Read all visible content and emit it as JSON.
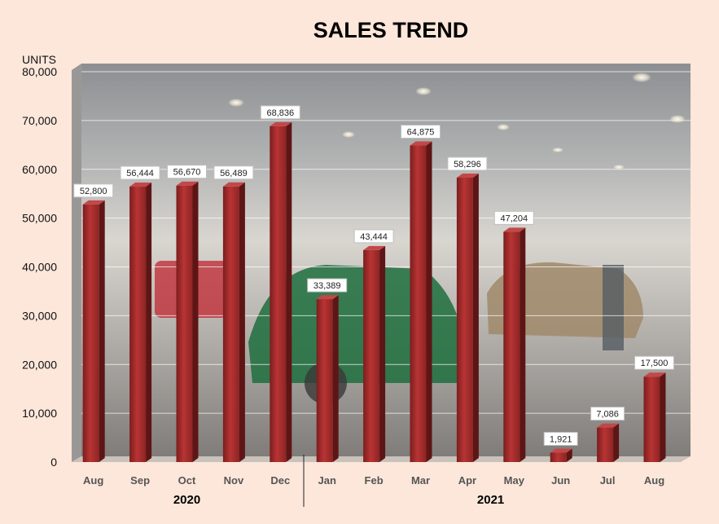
{
  "chart_data": {
    "type": "bar",
    "title": "SALES TREND",
    "ylabel": "UNITS",
    "xlabel": "",
    "ylim": [
      0,
      80000
    ],
    "yticks": [
      "0",
      "10,000",
      "20,000",
      "30,000",
      "40,000",
      "50,000",
      "60,000",
      "70,000",
      "80,000"
    ],
    "categories": [
      "Aug",
      "Sep",
      "Oct",
      "Nov",
      "Dec",
      "Jan",
      "Feb",
      "Mar",
      "Apr",
      "May",
      "Jun",
      "Jul",
      "Aug"
    ],
    "values": [
      52800,
      56444,
      56670,
      56489,
      68836,
      33389,
      43444,
      64875,
      58296,
      47204,
      1921,
      7086,
      17500
    ],
    "data_labels": [
      "52,800",
      "56,444",
      "56,670",
      "56,489",
      "68,836",
      "33,389",
      "43,444",
      "64,875",
      "58,296",
      "47,204",
      "1,921",
      "7,086",
      "17,500"
    ],
    "groups": [
      {
        "label": "2020",
        "count": 5
      },
      {
        "label": "2021",
        "count": 8
      }
    ],
    "grid": true,
    "bar_color": "#a52a2a",
    "background": "#fce7da"
  }
}
